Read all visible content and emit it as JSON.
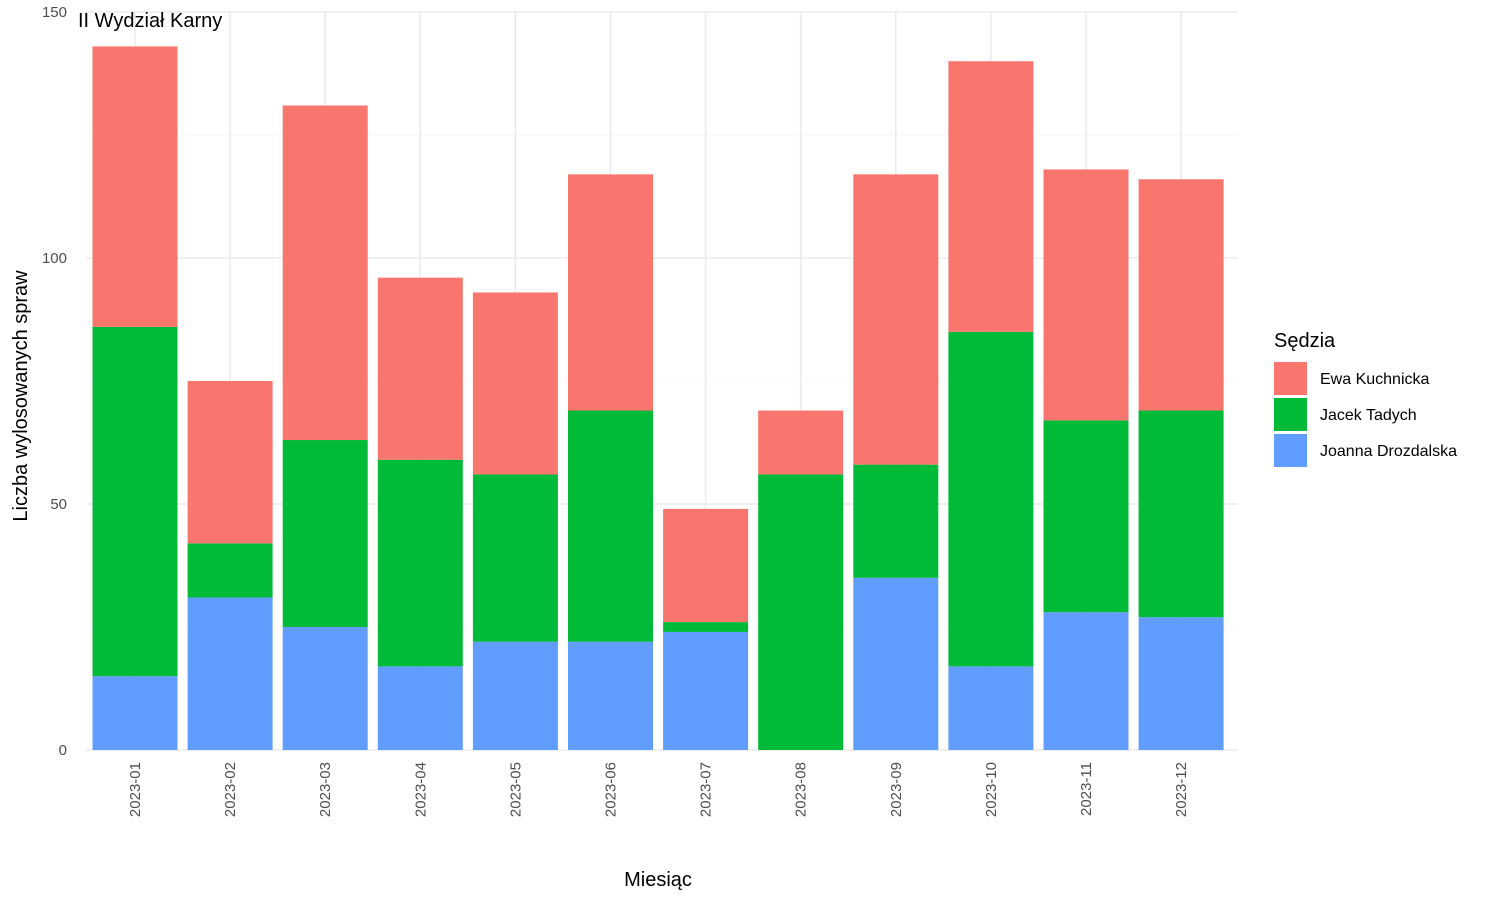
{
  "chart_data": {
    "type": "bar",
    "stacked": true,
    "title": "II Wydział Karny",
    "xlabel": "Miesiąc",
    "ylabel": "Liczba wylosowanych spraw",
    "ylim": [
      0,
      150
    ],
    "yticks": [
      0,
      50,
      100,
      150
    ],
    "grid": true,
    "legend_position": "right",
    "legend_title": "Sędzia",
    "categories": [
      "2023-01",
      "2023-02",
      "2023-03",
      "2023-04",
      "2023-05",
      "2023-06",
      "2023-07",
      "2023-08",
      "2023-09",
      "2023-10",
      "2023-11",
      "2023-12"
    ],
    "series": [
      {
        "name": "Joanna Drozdalska",
        "color": "#619CFF",
        "values": [
          15,
          31,
          25,
          17,
          22,
          22,
          24,
          0,
          35,
          17,
          28,
          27
        ]
      },
      {
        "name": "Jacek Tadych",
        "color": "#00BA38",
        "values": [
          71,
          11,
          38,
          42,
          34,
          47,
          2,
          56,
          23,
          68,
          39,
          42
        ]
      },
      {
        "name": "Ewa Kuchnicka",
        "color": "#F8766D",
        "values": [
          57,
          33,
          68,
          37,
          37,
          48,
          23,
          13,
          59,
          55,
          51,
          47
        ]
      }
    ],
    "legend_order": [
      "Ewa Kuchnicka",
      "Jacek Tadych",
      "Joanna Drozdalska"
    ]
  }
}
